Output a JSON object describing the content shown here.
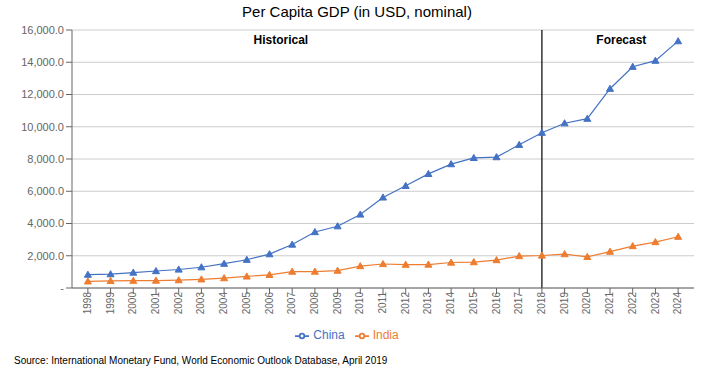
{
  "chart_data": {
    "type": "line",
    "title": "Per Capita GDP (in USD, nominal)",
    "x": [
      1998,
      1999,
      2000,
      2001,
      2002,
      2003,
      2004,
      2005,
      2006,
      2007,
      2008,
      2009,
      2010,
      2011,
      2012,
      2013,
      2014,
      2015,
      2016,
      2017,
      2018,
      2019,
      2020,
      2021,
      2022,
      2023,
      2024
    ],
    "series": [
      {
        "name": "China",
        "color": "#4472C4",
        "marker": "triangle",
        "values": [
          828,
          857,
          959,
          1053,
          1148,
          1288,
          1508,
          1753,
          2099,
          2694,
          3471,
          3832,
          4560,
          5618,
          6337,
          7077,
          7683,
          8069,
          8117,
          8879,
          9631,
          10218,
          10500,
          12359,
          13721,
          14096,
          15309
        ]
      },
      {
        "name": "India",
        "color": "#ED7D31",
        "marker": "triangle",
        "values": [
          413,
          438,
          453,
          462,
          486,
          538,
          614,
          718,
          818,
          1017,
          1017,
          1080,
          1358,
          1489,
          1447,
          1455,
          1581,
          1606,
          1732,
          1982,
          2016,
          2104,
          1929,
          2256,
          2601,
          2850,
          3180
        ]
      }
    ],
    "xlim": [
      1997.3,
      2024.7
    ],
    "xticks": [
      1998,
      1999,
      2000,
      2001,
      2002,
      2003,
      2004,
      2005,
      2006,
      2007,
      2008,
      2009,
      2010,
      2011,
      2012,
      2013,
      2014,
      2015,
      2016,
      2017,
      2018,
      2019,
      2020,
      2021,
      2022,
      2023,
      2024
    ],
    "ylim": [
      0,
      16000
    ],
    "yticks": [
      {
        "value": 0,
        "label": "-"
      },
      {
        "value": 2000,
        "label": "2,000.0"
      },
      {
        "value": 4000,
        "label": "4,000.0"
      },
      {
        "value": 6000,
        "label": "6,000.0"
      },
      {
        "value": 8000,
        "label": "8,000.0"
      },
      {
        "value": 10000,
        "label": "10,000.0"
      },
      {
        "value": 12000,
        "label": "12,000.0"
      },
      {
        "value": 14000,
        "label": "14,000.0"
      },
      {
        "value": 16000,
        "label": "16,000.0"
      }
    ],
    "vline": 2018,
    "annotations": [
      {
        "text": "Historical",
        "x": 2006.5,
        "y": 15400
      },
      {
        "text": "Forecast",
        "x": 2021.5,
        "y": 15400
      }
    ],
    "source": "Source: International Monetary Fund, World Economic Outlook Database, April 2019",
    "grid": true,
    "legend": "bottom"
  }
}
